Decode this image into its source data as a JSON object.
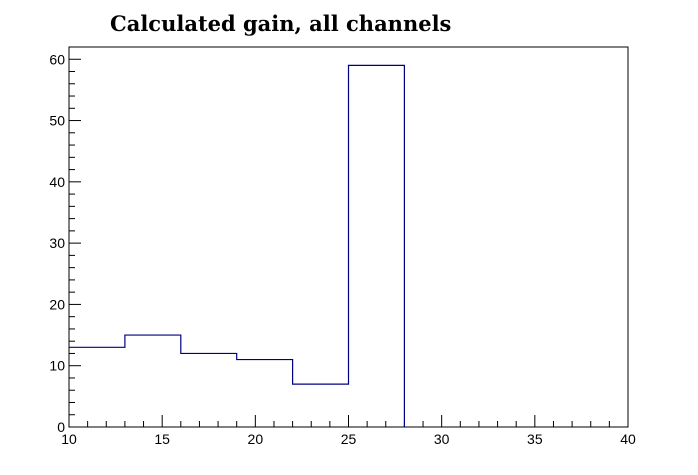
{
  "chart_data": {
    "type": "bar",
    "title": "Calculated gain, all channels",
    "xlabel": "",
    "ylabel": "",
    "xlim": [
      10,
      40
    ],
    "ylim": [
      0,
      62
    ],
    "grid": false,
    "line_color": "#000080",
    "bins": [
      {
        "x0": 10,
        "x1": 13,
        "value": 13
      },
      {
        "x0": 13,
        "x1": 16,
        "value": 15
      },
      {
        "x0": 16,
        "x1": 19,
        "value": 12
      },
      {
        "x0": 19,
        "x1": 22,
        "value": 11
      },
      {
        "x0": 22,
        "x1": 25,
        "value": 7
      },
      {
        "x0": 25,
        "x1": 28,
        "value": 59
      }
    ],
    "x_ticks": [
      "10",
      "15",
      "20",
      "25",
      "30",
      "35",
      "40"
    ],
    "y_ticks": [
      "0",
      "10",
      "20",
      "30",
      "40",
      "50",
      "60"
    ]
  }
}
